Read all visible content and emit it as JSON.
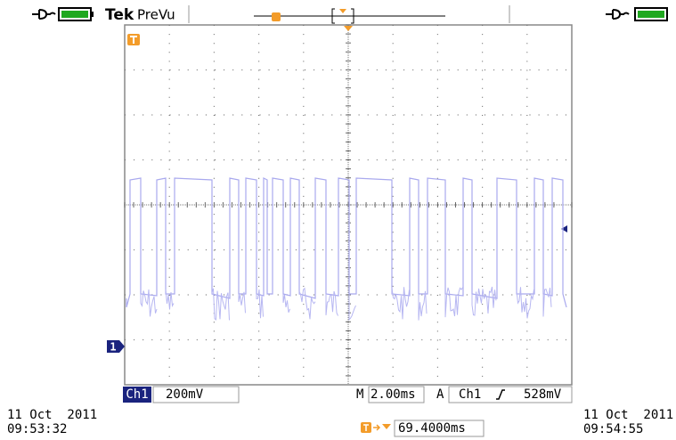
{
  "header": {
    "brand": "Tek",
    "mode": "PreVu"
  },
  "channel_marker": "1",
  "status": {
    "channel": "Ch1",
    "scale": "200mV",
    "timebase_label": "M",
    "timebase": "2.00ms",
    "trigger_label": "A",
    "trigger_source": "Ch1",
    "trigger_level": "528mV"
  },
  "start_time": {
    "date": "11 Oct  2011",
    "time": "09:53:32"
  },
  "end_time": {
    "date": "11 Oct  2011",
    "time": "09:54:55"
  },
  "trigger_position": "69.4000ms"
}
